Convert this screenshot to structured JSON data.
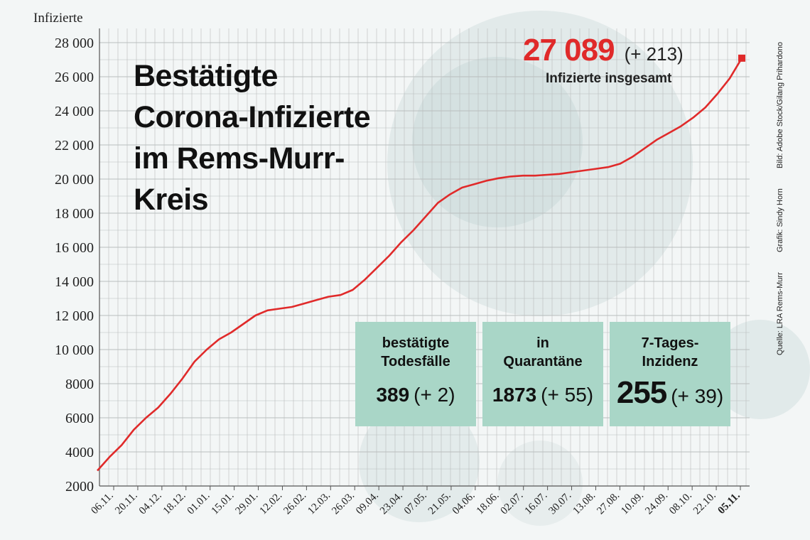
{
  "chart_data": {
    "type": "line",
    "title": "Bestätigte Corona-Infizierte im Rems-Murr-Kreis",
    "title_lines": [
      "Bestätigte",
      "Corona-Infizierte",
      "im Rems-Murr-",
      "Kreis"
    ],
    "ylabel": "Infizierte",
    "ylim": [
      2000,
      28000
    ],
    "yticks": [
      2000,
      4000,
      6000,
      8000,
      10000,
      12000,
      14000,
      16000,
      18000,
      20000,
      22000,
      24000,
      26000,
      28000
    ],
    "ytick_labels": [
      "2000",
      "4000",
      "6000",
      "8000",
      "10 000",
      "12 000",
      "14 000",
      "16 000",
      "18 000",
      "20 000",
      "22 000",
      "24 000",
      "26 000",
      "28 000"
    ],
    "xtick_labels": [
      "06.11.",
      "20.11.",
      "04.12.",
      "18.12.",
      "01.01.",
      "15.01.",
      "29.01.",
      "12.02.",
      "26.02.",
      "12.03.",
      "26.03.",
      "09.04.",
      "23.04.",
      "07.05.",
      "21.05.",
      "04.06.",
      "18.06.",
      "02.07.",
      "16.07.",
      "30.07.",
      "13.08.",
      "27.08.",
      "10.09.",
      "24.09.",
      "08.10.",
      "22.10.",
      "05.11."
    ],
    "grid": true,
    "series": [
      {
        "values": [
          2900,
          3700,
          4400,
          5300,
          6000,
          6600,
          7400,
          8300,
          9300,
          10000,
          10600,
          11000,
          11500,
          12000,
          12300,
          12400,
          12500,
          12700,
          12900,
          13100,
          13200,
          13500,
          14100,
          14800,
          15500,
          16300,
          17000,
          17800,
          18600,
          19100,
          19500,
          19700,
          19900,
          20050,
          20150,
          20200,
          20200,
          20250,
          20300,
          20400,
          20500,
          20600,
          20700,
          20900,
          21300,
          21800,
          22300,
          22700,
          23100,
          23600,
          24200,
          25000,
          25900,
          27089
        ]
      }
    ],
    "color": "#e02a2a",
    "last_value": 27089
  },
  "annotation": {
    "total": "27 089",
    "total_delta": "(+ 213)",
    "total_label": "Infizierte insgesamt"
  },
  "boxes": [
    {
      "label_lines": [
        "bestätigte",
        "Todesfälle"
      ],
      "value": "389",
      "delta": "(+ 2)"
    },
    {
      "label_lines": [
        "in",
        "Quarantäne"
      ],
      "value": "1873",
      "delta": "(+ 55)"
    },
    {
      "label_lines": [
        "7-Tages-",
        "Inzidenz"
      ],
      "value": "255",
      "delta": "(+ 39)"
    }
  ],
  "credits": {
    "source": "Quelle: LRA Rems-Murr",
    "graphic": "Grafik: Sindy Horn",
    "image": "Bild: Adobe Stock/Gilang Prihardono"
  },
  "colors": {
    "line": "#e02a2a",
    "box": "#a9d6c7",
    "grid": "#b9bdbd"
  }
}
